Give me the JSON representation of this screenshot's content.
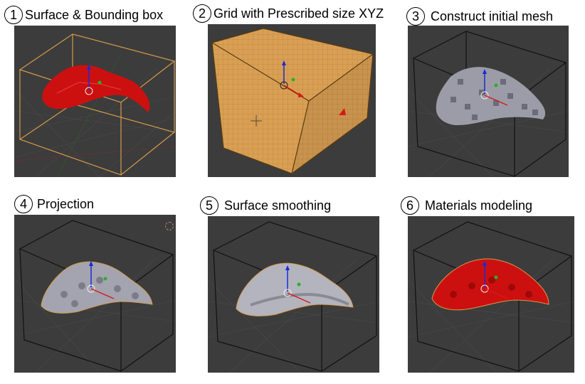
{
  "colors": {
    "viewport_bg": "#3c3c3c",
    "grid_line": "#4a4a4a",
    "bbox_orange": "#d59a4a",
    "bbox_dark": "#111111",
    "organ_red": "#cc1010",
    "mesh_gray": "#9c9ca8",
    "grid_box": "#d9a055",
    "axis_blue": "#1a2bd6",
    "axis_green": "#22b522",
    "axis_red": "#d81818"
  },
  "panels": [
    {
      "num": "1",
      "title": "Surface & Bounding box",
      "icon": "liver-surface-with-bbox"
    },
    {
      "num": "2",
      "title": "Grid with Prescribed size XYZ",
      "icon": "voxel-grid-box"
    },
    {
      "num": "3",
      "title": "Construct initial mesh",
      "icon": "voxel-mesh"
    },
    {
      "num": "4",
      "title": "Projection",
      "icon": "projected-mesh"
    },
    {
      "num": "5",
      "title": "Surface smoothing",
      "icon": "smoothed-mesh"
    },
    {
      "num": "6",
      "title": "Materials modeling",
      "icon": "red-material-mesh"
    }
  ]
}
